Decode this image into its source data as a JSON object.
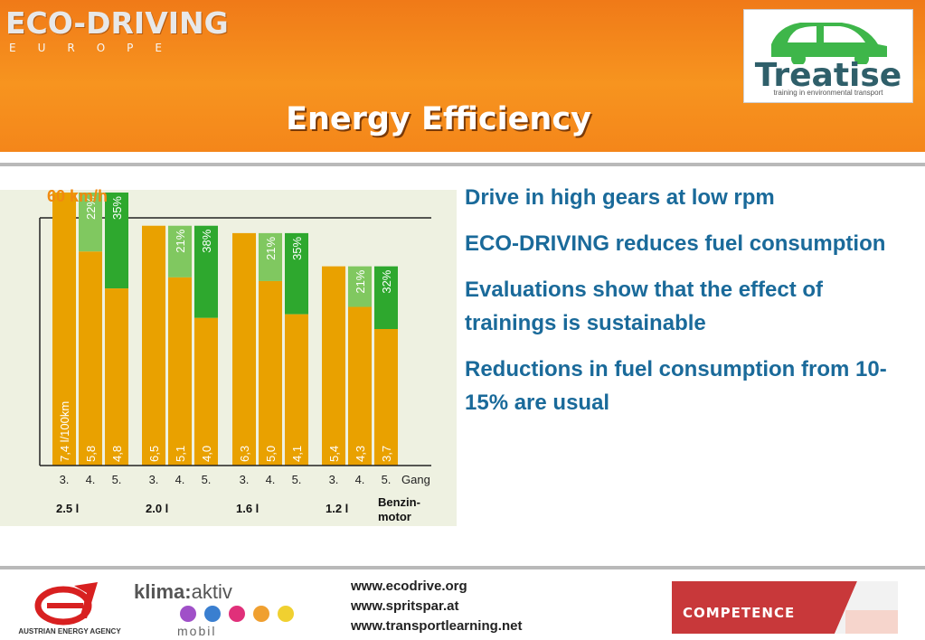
{
  "header": {
    "brand": "ECO-DRIVING",
    "brand_sub": "EUROPE",
    "title": "Energy Efficiency",
    "partner_logo": {
      "word": "Treatise",
      "tagline": "training in environmental transport"
    }
  },
  "chart_data": {
    "type": "bar",
    "title": "60 km/h",
    "ylabel": "l/100km",
    "gear_suffix": "Gang",
    "engine_label_line1": "Benzin-",
    "engine_label_line2": "motor",
    "groups": [
      {
        "engine": "2.5 l",
        "gears": [
          "3.",
          "4.",
          "5."
        ],
        "consumption": [
          7.4,
          5.8,
          4.8
        ],
        "labels": [
          "7,4 l/100km",
          "5,8",
          "4,8"
        ],
        "savings": [
          "22%",
          "35%"
        ]
      },
      {
        "engine": "2.0 l",
        "gears": [
          "3.",
          "4.",
          "5."
        ],
        "consumption": [
          6.5,
          5.1,
          4.0
        ],
        "labels": [
          "6,5",
          "5,1",
          "4,0"
        ],
        "savings": [
          "21%",
          "38%"
        ]
      },
      {
        "engine": "1.6 l",
        "gears": [
          "3.",
          "4.",
          "5."
        ],
        "consumption": [
          6.3,
          5.0,
          4.1
        ],
        "labels": [
          "6,3",
          "5,0",
          "4,1"
        ],
        "savings": [
          "21%",
          "35%"
        ]
      },
      {
        "engine": "1.2 l",
        "gears": [
          "3.",
          "4.",
          "5."
        ],
        "consumption": [
          5.4,
          4.3,
          3.7
        ],
        "labels": [
          "5,4",
          "4,3",
          "3,7"
        ],
        "savings": [
          "21%",
          "32%"
        ]
      }
    ],
    "colors": {
      "bar": "#e9a100",
      "saving_4th": "#80c860",
      "saving_5th": "#2ea82e"
    }
  },
  "bullets": [
    "Drive in high gears at low rpm",
    "ECO-DRIVING reduces fuel consumption",
    "Evaluations show that the effect of trainings is sustainable",
    "Reductions in fuel consumption from 10-15% are usual"
  ],
  "footer": {
    "urls": [
      "www.ecodrive.org",
      "www.spritspar.at",
      "www.transportlearning.net"
    ],
    "agency": "AUSTRIAN ENERGY AGENCY",
    "klima_a": "klima:",
    "klima_b": "aktiv",
    "klima_mobil": "mobil",
    "klima_dot_colors": [
      "#a050c8",
      "#3a7fd0",
      "#e0307a",
      "#f0a030",
      "#f0d030"
    ],
    "competence": "COMPETENCE"
  },
  "colors": {
    "header_orange": "#f7941f",
    "text_blue": "#1a6a9a",
    "chart_bg": "#eef1e1"
  }
}
